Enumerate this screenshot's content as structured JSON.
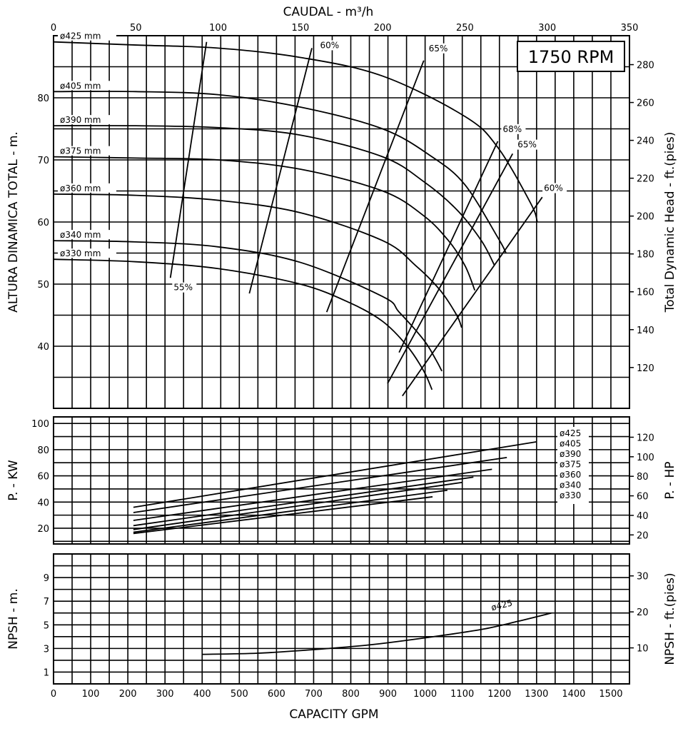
{
  "top_axis": {
    "title": "CAUDAL  - m³/h",
    "ticks": [
      0,
      50,
      100,
      150,
      200,
      250,
      300,
      350
    ]
  },
  "bottom_axis": {
    "title": "CAPACITY GPM",
    "ticks": [
      0,
      100,
      200,
      300,
      400,
      500,
      600,
      700,
      800,
      900,
      1000,
      1100,
      1200,
      1300,
      1400,
      1500
    ]
  },
  "rpm_label": "1750 RPM",
  "chart_data": [
    {
      "type": "line",
      "name_key": "head",
      "xlabel": "CAUDAL - m³/h",
      "ylabel": "ALTURA DINAMICA TOTAL - m.",
      "ylabel_right": "Total Dynamic Head - ft.(pies)",
      "xlim": [
        0,
        350
      ],
      "ylim": [
        30,
        90
      ],
      "yticks": [
        40,
        50,
        60,
        70,
        80
      ],
      "yticks_right": [
        120,
        140,
        160,
        180,
        200,
        220,
        240,
        260,
        280
      ],
      "grid": true,
      "series": [
        {
          "name": "ø425 mm",
          "x": [
            0,
            50,
            100,
            150,
            200,
            250,
            270,
            290,
            294
          ],
          "y": [
            89,
            88.5,
            88,
            86.5,
            83.5,
            77,
            72,
            63,
            60
          ]
        },
        {
          "name": "ø405 mm",
          "x": [
            0,
            50,
            100,
            150,
            200,
            230,
            250,
            270,
            275
          ],
          "y": [
            81,
            81,
            80.5,
            78.5,
            75,
            70.5,
            66,
            57.5,
            55
          ]
        },
        {
          "name": "ø390 mm",
          "x": [
            0,
            50,
            100,
            150,
            200,
            225,
            245,
            260,
            268
          ],
          "y": [
            75.5,
            75.5,
            75.2,
            74,
            70.5,
            66.5,
            62,
            57,
            53
          ]
        },
        {
          "name": "ø375 mm",
          "x": [
            0,
            50,
            100,
            150,
            200,
            225,
            240,
            250,
            256
          ],
          "y": [
            70.5,
            70.3,
            70,
            68.5,
            65,
            61,
            57,
            53,
            49
          ]
        },
        {
          "name": "ø360 mm",
          "x": [
            0,
            50,
            100,
            150,
            200,
            220,
            235,
            245,
            248
          ],
          "y": [
            64.5,
            64.3,
            63.5,
            61.5,
            57,
            53,
            49,
            45,
            43
          ]
        },
        {
          "name": "ø340 mm",
          "x": [
            0,
            50,
            100,
            150,
            200,
            210,
            225,
            232,
            236
          ],
          "y": [
            57,
            56.8,
            56,
            53.5,
            48,
            45.5,
            41,
            38,
            36
          ]
        },
        {
          "name": "ø330 mm",
          "x": [
            0,
            50,
            100,
            150,
            180,
            200,
            215,
            225,
            230
          ],
          "y": [
            54,
            53.6,
            52.5,
            50,
            47,
            44,
            40,
            36,
            33
          ]
        }
      ],
      "efficiency_lines": [
        {
          "name": "55%",
          "x": [
            71,
            93
          ],
          "y": [
            51,
            89
          ]
        },
        {
          "name": "60%",
          "x": [
            119,
            157
          ],
          "y": [
            48.5,
            88
          ]
        },
        {
          "name": "65%",
          "x": [
            166,
            225
          ],
          "y": [
            45.5,
            86
          ]
        },
        {
          "name": "68%",
          "x": [
            210,
            270
          ],
          "y": [
            39,
            73
          ]
        },
        {
          "name": "65%",
          "x": [
            203,
            279
          ],
          "y": [
            34,
            71
          ]
        },
        {
          "name": "60%",
          "x": [
            212,
            297
          ],
          "y": [
            32,
            64
          ]
        }
      ],
      "efficiency_label_pos": [
        {
          "x": 73,
          "y": 49
        },
        {
          "x": 162,
          "y": 88
        },
        {
          "x": 228,
          "y": 87.5
        },
        {
          "x": 273,
          "y": 74.5
        },
        {
          "x": 282,
          "y": 72
        },
        {
          "x": 298,
          "y": 65
        }
      ]
    },
    {
      "type": "line",
      "name_key": "power",
      "xlabel": "CAPACITY GPM",
      "ylabel": "P. - KW",
      "ylabel_right": "P. - HP",
      "xlim": [
        0,
        1550
      ],
      "ylim": [
        8,
        105
      ],
      "yticks": [
        20,
        40,
        60,
        80,
        100
      ],
      "yticks_right": [
        20,
        40,
        60,
        80,
        100,
        120
      ],
      "grid": true,
      "series": [
        {
          "name": "ø425",
          "x": [
            215,
            1300
          ],
          "y": [
            36,
            86
          ]
        },
        {
          "name": "ø405",
          "x": [
            215,
            1220
          ],
          "y": [
            32,
            74
          ]
        },
        {
          "name": "ø390",
          "x": [
            215,
            1180
          ],
          "y": [
            26,
            65
          ]
        },
        {
          "name": "ø375",
          "x": [
            215,
            1130
          ],
          "y": [
            22,
            59
          ]
        },
        {
          "name": "ø360",
          "x": [
            215,
            1100
          ],
          "y": [
            19,
            55
          ]
        },
        {
          "name": "ø340",
          "x": [
            215,
            1060
          ],
          "y": [
            17,
            49
          ]
        },
        {
          "name": "ø330",
          "x": [
            215,
            1020
          ],
          "y": [
            16,
            44
          ]
        }
      ]
    },
    {
      "type": "line",
      "name_key": "npsh",
      "xlabel": "CAPACITY GPM",
      "ylabel": "NPSH - m.",
      "ylabel_right": "NPSH - ft.(pies)",
      "xlim": [
        0,
        1550
      ],
      "ylim": [
        0,
        11
      ],
      "yticks": [
        1,
        3,
        5,
        7,
        9
      ],
      "yticks_right": [
        10,
        20,
        30
      ],
      "grid": true,
      "series": [
        {
          "name": "ø425",
          "x": [
            400,
            550,
            700,
            850,
            1000,
            1150,
            1250,
            1340
          ],
          "y": [
            2.5,
            2.6,
            2.9,
            3.3,
            3.9,
            4.6,
            5.3,
            6
          ]
        }
      ]
    }
  ]
}
